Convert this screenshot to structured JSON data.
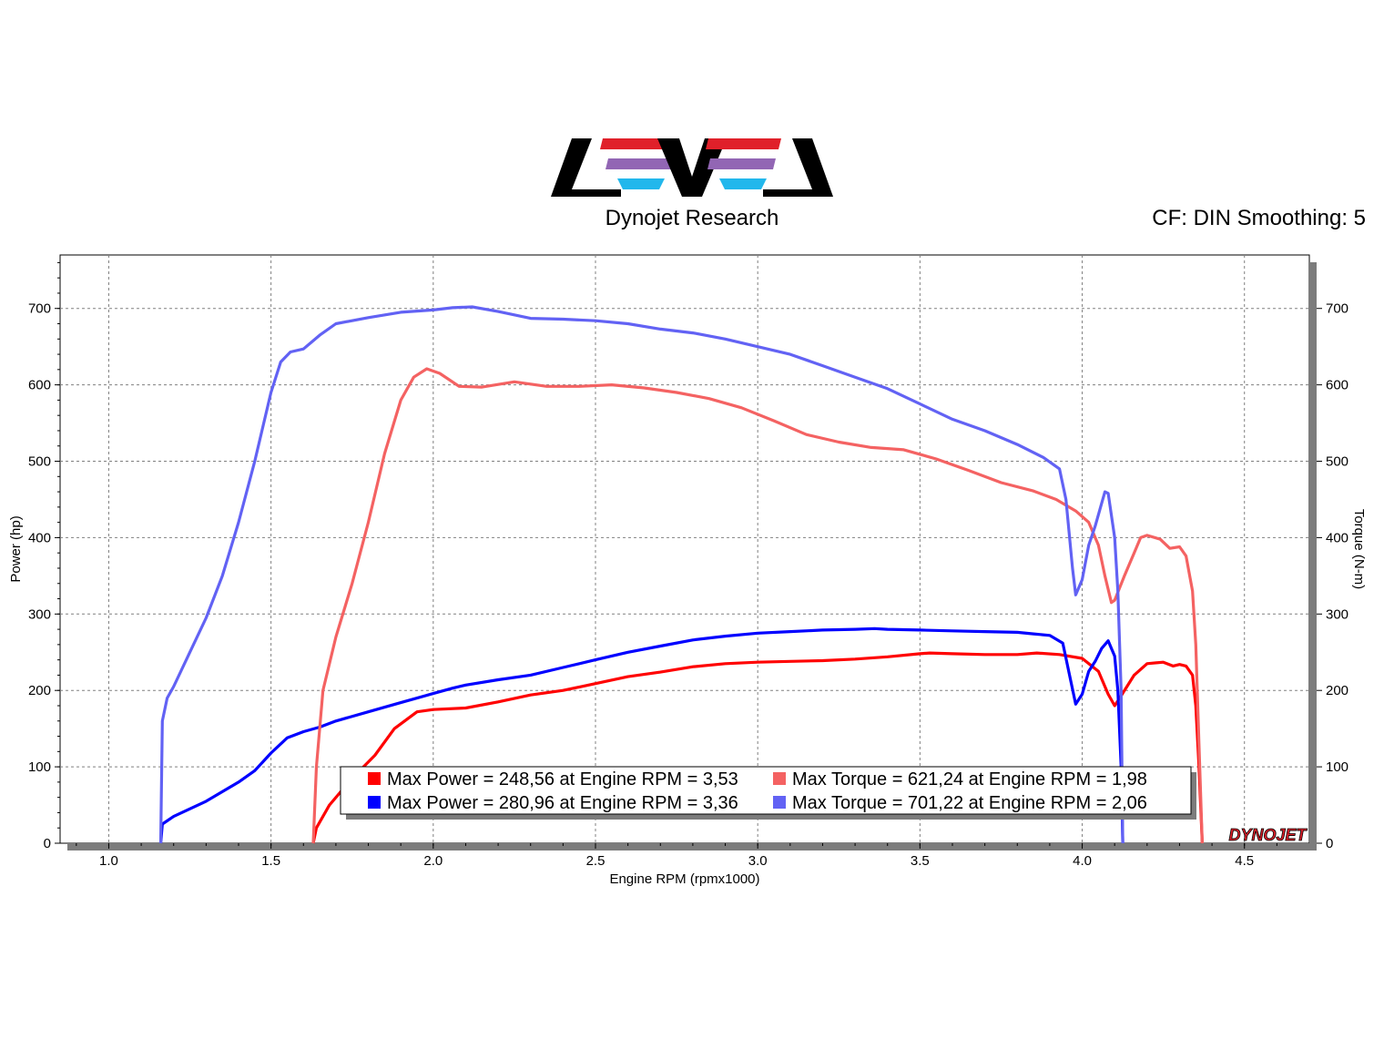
{
  "header": {
    "logo_text": "LEVEL",
    "subtitle": "Dynojet Research",
    "cf_info": "CF: DIN Smoothing: 5"
  },
  "branding": {
    "watermark": "DYNOJET"
  },
  "colors": {
    "red": "#ff0000",
    "blue": "#0000ff",
    "light_red": "#f46262",
    "light_blue": "#6262f4",
    "logo_red": "#e0202a",
    "logo_purple": "#9266b4",
    "logo_cyan": "#22b7ec"
  },
  "chart_data": {
    "type": "line",
    "xlabel": "Engine RPM (rpmx1000)",
    "ylabel": "Power (hp)",
    "y2label": "Torque (N-m)",
    "xlim": [
      0.85,
      4.7
    ],
    "ylim": [
      0,
      770
    ],
    "y2lim": [
      0,
      770
    ],
    "x_ticks": [
      "1.0",
      "1.5",
      "2.0",
      "2.5",
      "3.0",
      "3.5",
      "4.0",
      "4.5"
    ],
    "y_ticks": [
      "0",
      "100",
      "200",
      "300",
      "400",
      "500",
      "600",
      "700"
    ],
    "y2_ticks": [
      "0",
      "100",
      "200",
      "300",
      "400",
      "500",
      "600",
      "700"
    ],
    "grid": true,
    "legend": [
      {
        "text": "Max Power = 248,56 at Engine RPM = 3,53",
        "color": "#ff0000"
      },
      {
        "text": "Max Power = 280,96 at Engine RPM = 3,36",
        "color": "#0000ff"
      },
      {
        "text": "Max Torque = 621,24 at Engine RPM = 1,98",
        "color": "#f46262"
      },
      {
        "text": "Max Torque = 701,22 at Engine RPM = 2,06",
        "color": "#6262f4"
      }
    ],
    "series": [
      {
        "axis": "left",
        "color": "#ff0000",
        "points": [
          [
            1.63,
            0
          ],
          [
            1.64,
            20
          ],
          [
            1.68,
            50
          ],
          [
            1.75,
            85
          ],
          [
            1.82,
            115
          ],
          [
            1.88,
            150
          ],
          [
            1.95,
            172
          ],
          [
            2.0,
            175
          ],
          [
            2.1,
            177
          ],
          [
            2.2,
            185
          ],
          [
            2.3,
            194
          ],
          [
            2.4,
            200
          ],
          [
            2.5,
            209
          ],
          [
            2.6,
            218
          ],
          [
            2.7,
            224
          ],
          [
            2.8,
            231
          ],
          [
            2.9,
            235
          ],
          [
            3.0,
            237
          ],
          [
            3.1,
            238
          ],
          [
            3.2,
            239
          ],
          [
            3.3,
            241
          ],
          [
            3.4,
            244
          ],
          [
            3.5,
            248
          ],
          [
            3.53,
            249
          ],
          [
            3.6,
            248
          ],
          [
            3.7,
            247
          ],
          [
            3.8,
            247
          ],
          [
            3.86,
            249
          ],
          [
            3.93,
            247
          ],
          [
            4.0,
            242
          ],
          [
            4.05,
            225
          ],
          [
            4.08,
            195
          ],
          [
            4.1,
            180
          ],
          [
            4.12,
            193
          ],
          [
            4.16,
            220
          ],
          [
            4.2,
            235
          ],
          [
            4.25,
            237
          ],
          [
            4.28,
            232
          ],
          [
            4.3,
            234
          ],
          [
            4.32,
            232
          ],
          [
            4.34,
            220
          ],
          [
            4.35,
            180
          ],
          [
            4.36,
            100
          ],
          [
            4.37,
            0
          ]
        ]
      },
      {
        "axis": "left",
        "color": "#0000ff",
        "points": [
          [
            1.16,
            0
          ],
          [
            1.165,
            25
          ],
          [
            1.2,
            35
          ],
          [
            1.3,
            55
          ],
          [
            1.4,
            80
          ],
          [
            1.45,
            95
          ],
          [
            1.5,
            118
          ],
          [
            1.55,
            138
          ],
          [
            1.6,
            146
          ],
          [
            1.65,
            152
          ],
          [
            1.7,
            160
          ],
          [
            1.8,
            172
          ],
          [
            1.9,
            184
          ],
          [
            2.0,
            196
          ],
          [
            2.06,
            203
          ],
          [
            2.1,
            207
          ],
          [
            2.2,
            214
          ],
          [
            2.3,
            220
          ],
          [
            2.4,
            230
          ],
          [
            2.5,
            240
          ],
          [
            2.6,
            250
          ],
          [
            2.7,
            258
          ],
          [
            2.8,
            266
          ],
          [
            2.9,
            271
          ],
          [
            3.0,
            275
          ],
          [
            3.1,
            277
          ],
          [
            3.2,
            279
          ],
          [
            3.3,
            280
          ],
          [
            3.36,
            281
          ],
          [
            3.4,
            280
          ],
          [
            3.5,
            279
          ],
          [
            3.6,
            278
          ],
          [
            3.7,
            277
          ],
          [
            3.8,
            276
          ],
          [
            3.85,
            274
          ],
          [
            3.9,
            272
          ],
          [
            3.94,
            262
          ],
          [
            3.96,
            222
          ],
          [
            3.98,
            182
          ],
          [
            4.0,
            195
          ],
          [
            4.02,
            225
          ],
          [
            4.04,
            238
          ],
          [
            4.06,
            255
          ],
          [
            4.08,
            265
          ],
          [
            4.1,
            245
          ],
          [
            4.11,
            200
          ],
          [
            4.12,
            100
          ],
          [
            4.125,
            0
          ]
        ]
      },
      {
        "axis": "right",
        "color": "#f46262",
        "points": [
          [
            1.63,
            0
          ],
          [
            1.64,
            100
          ],
          [
            1.66,
            200
          ],
          [
            1.7,
            270
          ],
          [
            1.75,
            340
          ],
          [
            1.8,
            420
          ],
          [
            1.85,
            510
          ],
          [
            1.9,
            580
          ],
          [
            1.94,
            610
          ],
          [
            1.98,
            621
          ],
          [
            2.02,
            615
          ],
          [
            2.08,
            598
          ],
          [
            2.15,
            597
          ],
          [
            2.25,
            604
          ],
          [
            2.35,
            598
          ],
          [
            2.45,
            598
          ],
          [
            2.55,
            600
          ],
          [
            2.65,
            596
          ],
          [
            2.75,
            590
          ],
          [
            2.85,
            582
          ],
          [
            2.95,
            570
          ],
          [
            3.05,
            553
          ],
          [
            3.15,
            535
          ],
          [
            3.25,
            525
          ],
          [
            3.35,
            518
          ],
          [
            3.45,
            515
          ],
          [
            3.55,
            503
          ],
          [
            3.65,
            488
          ],
          [
            3.75,
            472
          ],
          [
            3.85,
            461
          ],
          [
            3.92,
            450
          ],
          [
            3.98,
            435
          ],
          [
            4.02,
            420
          ],
          [
            4.05,
            390
          ],
          [
            4.07,
            350
          ],
          [
            4.09,
            315
          ],
          [
            4.1,
            318
          ],
          [
            4.13,
            350
          ],
          [
            4.16,
            380
          ],
          [
            4.18,
            400
          ],
          [
            4.2,
            403
          ],
          [
            4.24,
            398
          ],
          [
            4.27,
            386
          ],
          [
            4.3,
            388
          ],
          [
            4.32,
            376
          ],
          [
            4.34,
            330
          ],
          [
            4.35,
            260
          ],
          [
            4.36,
            130
          ],
          [
            4.37,
            0
          ]
        ]
      },
      {
        "axis": "right",
        "color": "#6262f4",
        "points": [
          [
            1.16,
            0
          ],
          [
            1.165,
            160
          ],
          [
            1.18,
            190
          ],
          [
            1.2,
            205
          ],
          [
            1.25,
            250
          ],
          [
            1.3,
            295
          ],
          [
            1.35,
            350
          ],
          [
            1.4,
            420
          ],
          [
            1.45,
            500
          ],
          [
            1.5,
            590
          ],
          [
            1.53,
            630
          ],
          [
            1.56,
            643
          ],
          [
            1.6,
            647
          ],
          [
            1.65,
            665
          ],
          [
            1.7,
            680
          ],
          [
            1.8,
            688
          ],
          [
            1.9,
            695
          ],
          [
            2.0,
            698
          ],
          [
            2.06,
            701
          ],
          [
            2.12,
            702
          ],
          [
            2.2,
            696
          ],
          [
            2.3,
            687
          ],
          [
            2.4,
            686
          ],
          [
            2.5,
            684
          ],
          [
            2.6,
            680
          ],
          [
            2.7,
            673
          ],
          [
            2.8,
            668
          ],
          [
            2.9,
            660
          ],
          [
            3.0,
            650
          ],
          [
            3.1,
            640
          ],
          [
            3.2,
            625
          ],
          [
            3.3,
            610
          ],
          [
            3.4,
            595
          ],
          [
            3.5,
            575
          ],
          [
            3.6,
            555
          ],
          [
            3.7,
            540
          ],
          [
            3.8,
            522
          ],
          [
            3.88,
            505
          ],
          [
            3.93,
            490
          ],
          [
            3.95,
            450
          ],
          [
            3.97,
            360
          ],
          [
            3.98,
            325
          ],
          [
            4.0,
            345
          ],
          [
            4.02,
            390
          ],
          [
            4.04,
            415
          ],
          [
            4.06,
            445
          ],
          [
            4.07,
            460
          ],
          [
            4.08,
            458
          ],
          [
            4.1,
            400
          ],
          [
            4.11,
            330
          ],
          [
            4.12,
            200
          ],
          [
            4.125,
            0
          ]
        ]
      }
    ]
  }
}
